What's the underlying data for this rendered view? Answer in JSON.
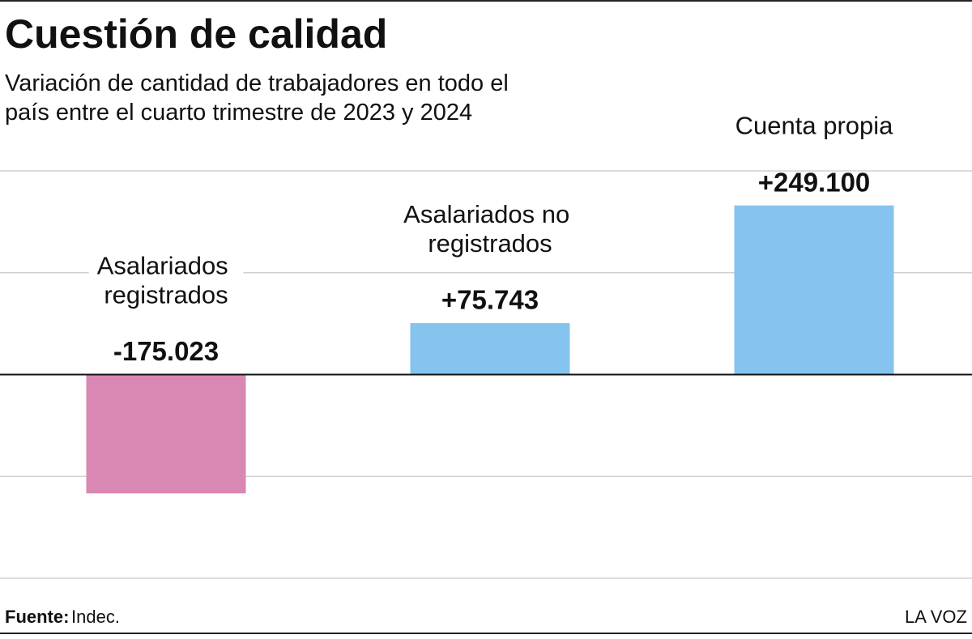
{
  "chart_data": {
    "type": "bar",
    "title": "Cuestión de calidad",
    "subtitle": "Variación de cantidad de trabajadores en todo el país entre el cuarto trimestre de 2023 y 2024",
    "categories": [
      "Asalariados registrados",
      "Asalariados no registrados",
      "Cuenta propia"
    ],
    "values": [
      -175023,
      75743,
      249100
    ],
    "value_labels": [
      "-175.023",
      "+75.743",
      "+249.100"
    ],
    "colors": [
      "#d988b3",
      "#85c4ee",
      "#85c4ee"
    ],
    "ylim": [
      -300000,
      300000
    ],
    "yticks": [
      -300000,
      -150000,
      0,
      150000,
      300000
    ],
    "grid": true,
    "source_label": "Fuente:",
    "source": "Indec.",
    "brand": "LA VOZ"
  }
}
